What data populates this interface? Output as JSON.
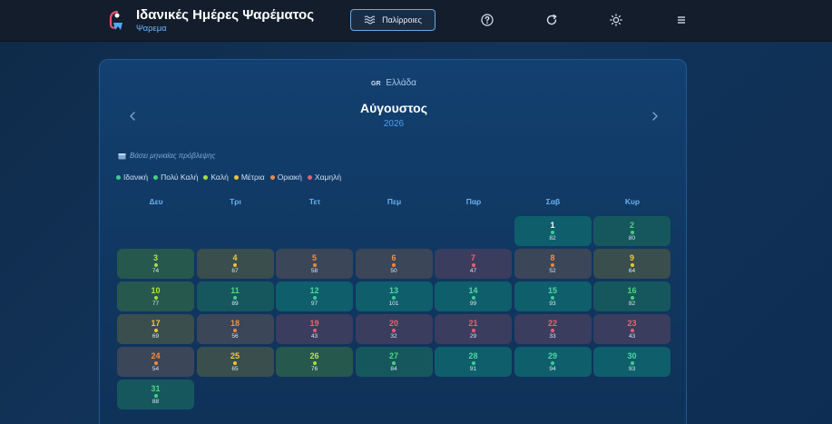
{
  "header": {
    "title": "Ιδανικές Ημέρες Ψαρέματος",
    "subtitle": "Ψαρεμα",
    "tides_button": "Παλίρροιες"
  },
  "calendar": {
    "country_code": "GR",
    "country": "Ελλάδα",
    "month": "Αύγουστος",
    "year": "2026",
    "basis_note": "Βάσει μηνιαίας πρόβλεψης",
    "legend": [
      {
        "label": "Ιδανική",
        "color": "#3ccf8e"
      },
      {
        "label": "Πολύ Καλή",
        "color": "#49d17a"
      },
      {
        "label": "Καλή",
        "color": "#a6df3b"
      },
      {
        "label": "Μέτρια",
        "color": "#f1c232"
      },
      {
        "label": "Οριακή",
        "color": "#f0883a"
      },
      {
        "label": "Χαμηλή",
        "color": "#ef5a6f"
      }
    ],
    "weekdays": [
      "Δευ",
      "Τρι",
      "Τετ",
      "Πεμ",
      "Παρ",
      "Σαβ",
      "Κυρ"
    ],
    "first_weekday_index": 5,
    "days": [
      {
        "day": "1",
        "score": "82",
        "rating": "ideal",
        "today": true
      },
      {
        "day": "2",
        "score": "80",
        "rating": "very_good"
      },
      {
        "day": "3",
        "score": "74",
        "rating": "good"
      },
      {
        "day": "4",
        "score": "67",
        "rating": "fair"
      },
      {
        "day": "5",
        "score": "58",
        "rating": "marginal"
      },
      {
        "day": "6",
        "score": "50",
        "rating": "marginal"
      },
      {
        "day": "7",
        "score": "47",
        "rating": "low"
      },
      {
        "day": "8",
        "score": "52",
        "rating": "marginal"
      },
      {
        "day": "9",
        "score": "64",
        "rating": "fair"
      },
      {
        "day": "10",
        "score": "77",
        "rating": "good"
      },
      {
        "day": "11",
        "score": "89",
        "rating": "very_good"
      },
      {
        "day": "12",
        "score": "97",
        "rating": "ideal"
      },
      {
        "day": "13",
        "score": "101",
        "rating": "ideal"
      },
      {
        "day": "14",
        "score": "99",
        "rating": "ideal"
      },
      {
        "day": "15",
        "score": "93",
        "rating": "ideal"
      },
      {
        "day": "16",
        "score": "82",
        "rating": "very_good"
      },
      {
        "day": "17",
        "score": "69",
        "rating": "fair"
      },
      {
        "day": "18",
        "score": "56",
        "rating": "marginal"
      },
      {
        "day": "19",
        "score": "43",
        "rating": "low"
      },
      {
        "day": "20",
        "score": "32",
        "rating": "low"
      },
      {
        "day": "21",
        "score": "29",
        "rating": "low"
      },
      {
        "day": "22",
        "score": "33",
        "rating": "low"
      },
      {
        "day": "23",
        "score": "43",
        "rating": "low"
      },
      {
        "day": "24",
        "score": "54",
        "rating": "marginal"
      },
      {
        "day": "25",
        "score": "65",
        "rating": "fair"
      },
      {
        "day": "26",
        "score": "76",
        "rating": "good"
      },
      {
        "day": "27",
        "score": "84",
        "rating": "very_good"
      },
      {
        "day": "28",
        "score": "91",
        "rating": "ideal"
      },
      {
        "day": "29",
        "score": "94",
        "rating": "ideal"
      },
      {
        "day": "30",
        "score": "93",
        "rating": "ideal"
      },
      {
        "day": "31",
        "score": "88",
        "rating": "very_good"
      }
    ]
  },
  "rating_styles": {
    "ideal": {
      "bg": "#0f5e6b",
      "num": "#4fd8a0",
      "dot": "#3ccf8e"
    },
    "very_good": {
      "bg": "#16575e",
      "num": "#4cd67c",
      "dot": "#49d17a"
    },
    "good": {
      "bg": "#27584e",
      "num": "#b4e640",
      "dot": "#a6df3b"
    },
    "fair": {
      "bg": "#394e4d",
      "num": "#f5c93a",
      "dot": "#f1c232"
    },
    "marginal": {
      "bg": "#3b4659",
      "num": "#f2903f",
      "dot": "#f0883a"
    },
    "low": {
      "bg": "#3a3d5e",
      "num": "#f0606f",
      "dot": "#ef5a6f"
    }
  }
}
